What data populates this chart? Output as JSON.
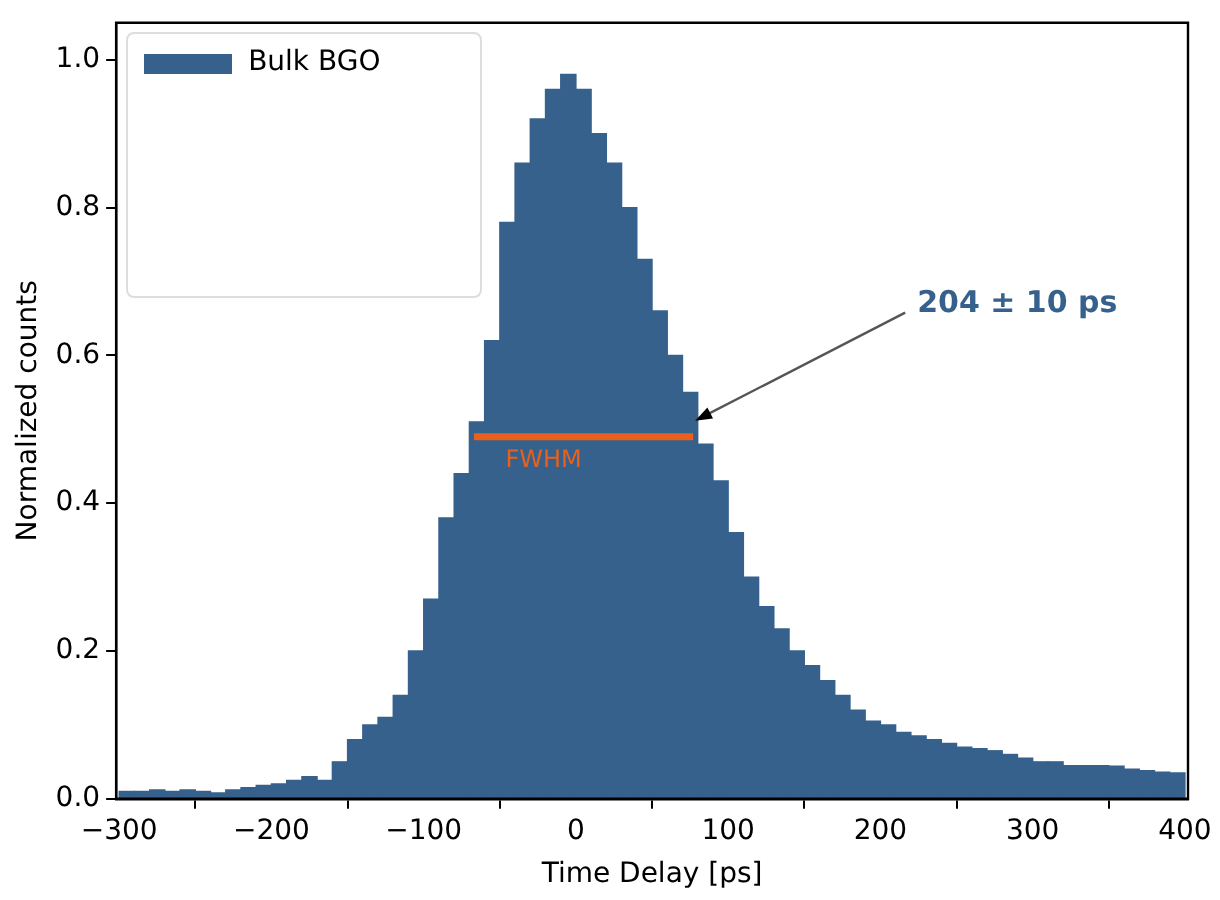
{
  "chart_data": {
    "type": "histogram",
    "xlabel": "Time Delay [ps]",
    "ylabel": "Normalized counts",
    "bins": [
      -300,
      -290,
      -280,
      -270,
      -260,
      -250,
      -240,
      -230,
      -220,
      -210,
      -200,
      -190,
      -180,
      -170,
      -160,
      -150,
      -140,
      -130,
      -120,
      -110,
      -100,
      -90,
      -80,
      -70,
      -60,
      -50,
      -40,
      -30,
      -20,
      -10,
      0,
      10,
      20,
      30,
      40,
      50,
      60,
      70,
      80,
      90,
      100,
      110,
      120,
      130,
      140,
      150,
      160,
      170,
      180,
      190,
      200,
      210,
      220,
      230,
      240,
      250,
      260,
      270,
      280,
      290,
      300,
      310,
      320,
      330,
      340,
      350,
      360,
      370,
      380,
      390,
      400
    ],
    "series": [
      {
        "name": "Bulk BGO",
        "color": "#36618d",
        "values": [
          0.01,
          0.01,
          0.012,
          0.01,
          0.012,
          0.01,
          0.008,
          0.012,
          0.015,
          0.018,
          0.02,
          0.025,
          0.03,
          0.025,
          0.05,
          0.08,
          0.1,
          0.11,
          0.14,
          0.2,
          0.27,
          0.38,
          0.44,
          0.51,
          0.62,
          0.78,
          0.86,
          0.92,
          0.96,
          0.98,
          0.96,
          0.9,
          0.86,
          0.8,
          0.73,
          0.66,
          0.6,
          0.55,
          0.48,
          0.43,
          0.36,
          0.3,
          0.26,
          0.23,
          0.2,
          0.18,
          0.16,
          0.14,
          0.12,
          0.105,
          0.1,
          0.09,
          0.085,
          0.08,
          0.075,
          0.07,
          0.068,
          0.065,
          0.06,
          0.055,
          0.05,
          0.05,
          0.045,
          0.045,
          0.045,
          0.044,
          0.04,
          0.038,
          0.036,
          0.035
        ]
      },
      {
        "type": "line",
        "color": "#e8601c",
        "x": [
          -67,
          77
        ],
        "values": [
          0.49,
          0.49
        ]
      }
    ],
    "annotations": [
      {
        "text": "FWHM",
        "x": 5,
        "y": 0.49
      },
      {
        "text": "204 ± 10 ps",
        "x": 77,
        "y": 0.49
      }
    ],
    "xlim": [
      -302,
      402
    ],
    "ylim": [
      0,
      1.05
    ],
    "xticks": [
      {
        "value": -300,
        "label": "−300"
      },
      {
        "value": -200,
        "label": "−200"
      },
      {
        "value": -100,
        "label": "−100"
      },
      0,
      100,
      200,
      300,
      400
    ],
    "yticks": [
      {
        "value": 0,
        "label": "0.0"
      },
      {
        "value": 0.2,
        "label": "0.2"
      },
      {
        "value": 0.4,
        "label": "0.4"
      },
      {
        "value": 0.6,
        "label": "0.6"
      },
      {
        "value": 0.8,
        "label": "0.8"
      },
      {
        "value": 1,
        "label": "1.0"
      }
    ],
    "grid": false,
    "legend": "top left",
    "marker": "none",
    "line_style": "solid"
  }
}
